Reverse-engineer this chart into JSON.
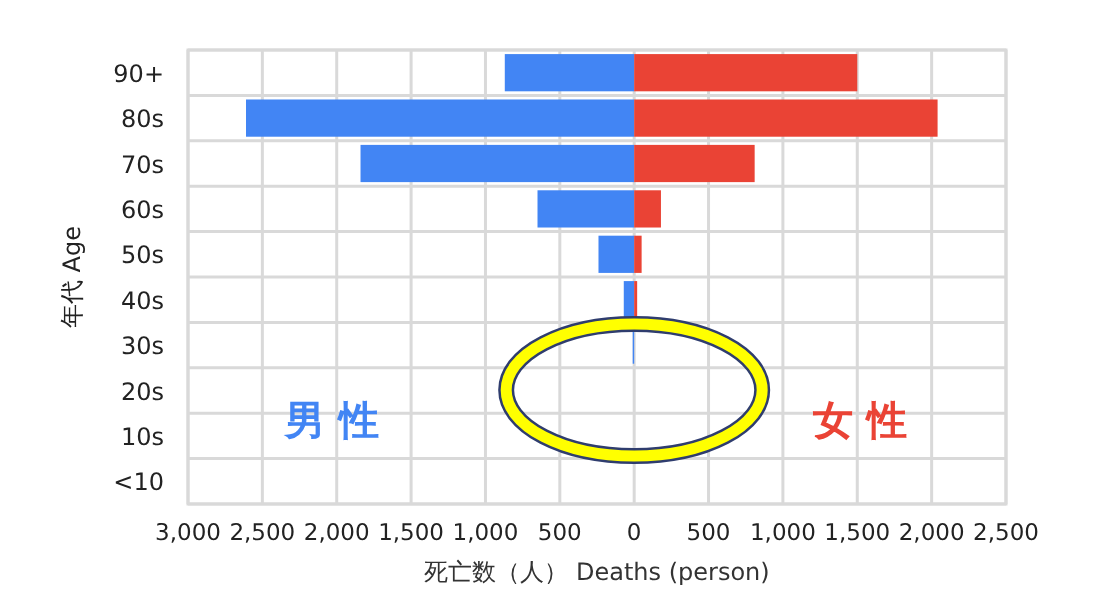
{
  "chart_data": {
    "type": "bar",
    "orientation": "horizontal",
    "stacked": true,
    "xlabel": "死亡数（人） Deaths (person)",
    "ylabel": "年代 Age",
    "categories": [
      "90+",
      "80s",
      "70s",
      "60s",
      "50s",
      "40s",
      "30s",
      "20s",
      "10s",
      "<10"
    ],
    "series": [
      {
        "name": "男 性",
        "color": "#4285f4",
        "values": [
          -870,
          -2610,
          -1840,
          -650,
          -240,
          -70,
          -10,
          0,
          0,
          0
        ]
      },
      {
        "name": "女 性",
        "color": "#ea4335",
        "values": [
          1500,
          2040,
          810,
          180,
          50,
          20,
          0,
          0,
          0,
          0
        ]
      }
    ],
    "xlim": [
      -3000,
      2500
    ],
    "xticks": [
      {
        "value": -3000,
        "label": "3,000"
      },
      {
        "value": -2500,
        "label": "2,500"
      },
      {
        "value": -2000,
        "label": "2,000"
      },
      {
        "value": -1500,
        "label": "1,500"
      },
      {
        "value": -1000,
        "label": "1,000"
      },
      {
        "value": -500,
        "label": "500"
      },
      0,
      500,
      {
        "value": 1000,
        "label": "1,000"
      },
      {
        "value": 1500,
        "label": "1,500"
      },
      {
        "value": 2000,
        "label": "2,000"
      },
      {
        "value": 2500,
        "label": "2,500"
      }
    ],
    "grid": true
  }
}
